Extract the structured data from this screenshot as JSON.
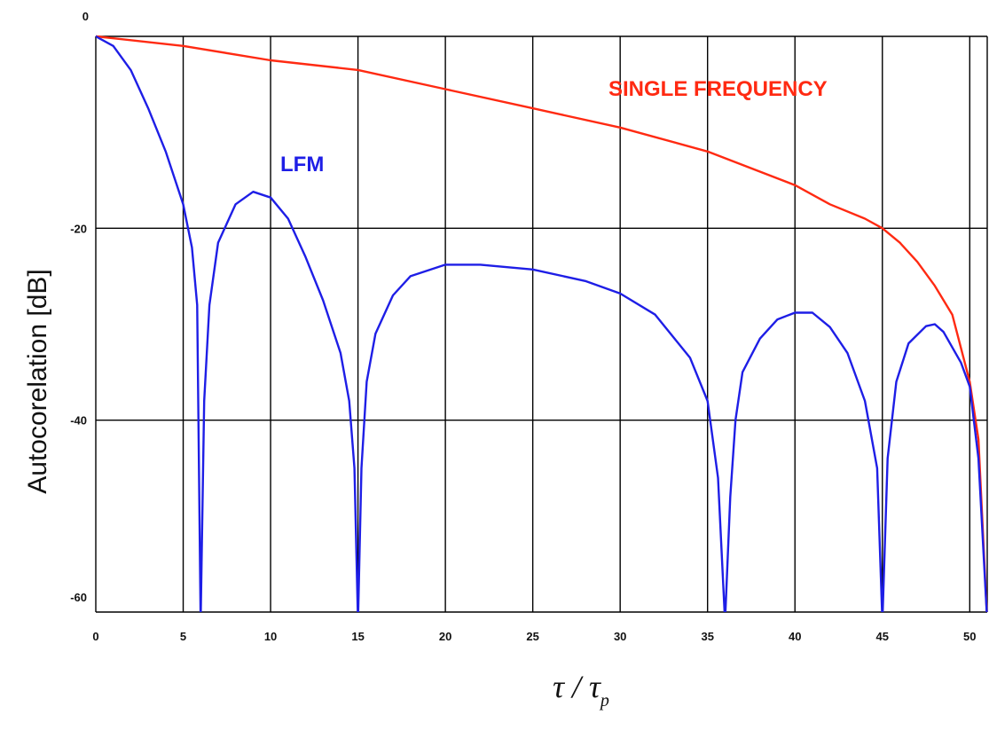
{
  "chart_data": {
    "type": "line",
    "ylabel": "Autocorelation [dB]",
    "xlabel": {
      "base": "τ / τ",
      "sub": "p"
    },
    "xlim": [
      0,
      51
    ],
    "ylim": [
      -60,
      0
    ],
    "x_ticks": [
      "0",
      "5",
      "10",
      "15",
      "20",
      "25",
      "30",
      "35",
      "40",
      "45",
      "50"
    ],
    "y_ticks": [
      "0",
      "-20",
      "-40",
      "-60"
    ],
    "grid": true,
    "series": [
      {
        "name": "SINGLE FREQUENCY",
        "color": "#ff2a12",
        "x": [
          0,
          5,
          10,
          15,
          20,
          25,
          30,
          35,
          40,
          42,
          44,
          45,
          46,
          47,
          48,
          49,
          50,
          50.5,
          51
        ],
        "y": [
          0,
          -1,
          -2.5,
          -3.5,
          -5.5,
          -7.5,
          -9.5,
          -12,
          -15.5,
          -17.5,
          -19,
          -20,
          -21.5,
          -23.5,
          -26,
          -29,
          -36,
          -42,
          -61
        ]
      },
      {
        "name": "LFM",
        "color": "#1e1ee6",
        "x": [
          0,
          1,
          2,
          3,
          4,
          5,
          5.5,
          5.8,
          6,
          6.2,
          6.5,
          7,
          8,
          9,
          10,
          11,
          12,
          13,
          14,
          14.5,
          14.8,
          15,
          15.2,
          15.5,
          16,
          17,
          18,
          20,
          22,
          25,
          28,
          30,
          32,
          34,
          35,
          35.6,
          36,
          36.3,
          36.6,
          37,
          38,
          39,
          40,
          41,
          42,
          43,
          44,
          44.7,
          45,
          45.3,
          45.8,
          46.5,
          47.5,
          48,
          48.5,
          49.5,
          50,
          50.5,
          51
        ],
        "y": [
          0,
          -1,
          -3.5,
          -7.5,
          -12,
          -17.5,
          -22,
          -28,
          -61,
          -38,
          -28,
          -21.5,
          -17.5,
          -16.2,
          -16.8,
          -19,
          -23,
          -27.5,
          -33,
          -38,
          -45,
          -61,
          -45,
          -36,
          -31,
          -27,
          -25,
          -23.8,
          -23.8,
          -24.3,
          -25.5,
          -26.8,
          -29,
          -33.5,
          -38,
          -46,
          -61,
          -48,
          -40,
          -35,
          -31.5,
          -29.5,
          -28.8,
          -28.8,
          -30.3,
          -33,
          -38,
          -45,
          -61,
          -44,
          -36,
          -32,
          -30.2,
          -30,
          -30.8,
          -34,
          -36.5,
          -44,
          -61
        ]
      }
    ]
  }
}
